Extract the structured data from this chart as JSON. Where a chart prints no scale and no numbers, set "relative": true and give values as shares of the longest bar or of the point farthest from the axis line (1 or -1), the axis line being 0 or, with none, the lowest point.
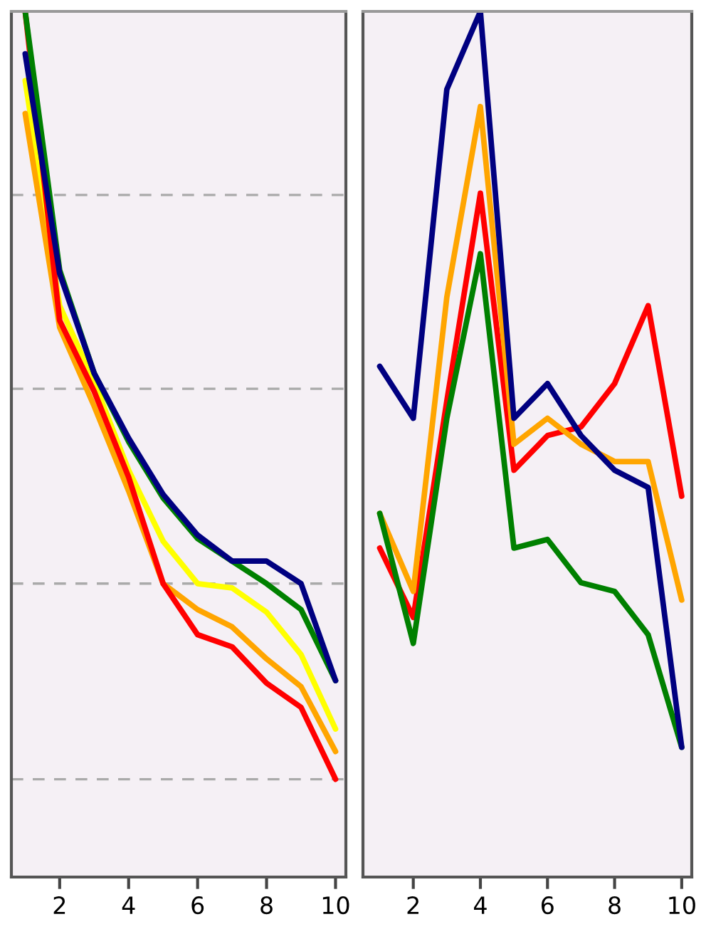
{
  "chart_data": [
    {
      "type": "line",
      "relative": true,
      "x": [
        1,
        2,
        3,
        4,
        5,
        6,
        7,
        8,
        9,
        10
      ],
      "xlim": [
        0.6,
        10.3
      ],
      "xticks": [
        2,
        4,
        6,
        8,
        10
      ],
      "tick_labels": "x",
      "grid": false,
      "legend": false,
      "line_style": "solid",
      "ref_lines": [
        {
          "axis": "y",
          "value": 0.788,
          "color": "#aaaaaa",
          "line_style": "dashed"
        },
        {
          "axis": "y",
          "value": 0.564,
          "color": "#aaaaaa",
          "line_style": "dashed"
        },
        {
          "axis": "y",
          "value": 0.339,
          "color": "#aaaaaa",
          "line_style": "dashed"
        },
        {
          "axis": "y",
          "value": 0.113,
          "color": "#aaaaaa",
          "line_style": "dashed"
        }
      ],
      "series": [
        {
          "color": "#ffff00",
          "values": [
            0.92,
            0.66,
            0.572,
            0.47,
            0.388,
            0.339,
            0.334,
            0.306,
            0.257,
            0.171
          ]
        },
        {
          "color": "#ffa500",
          "values": [
            0.882,
            0.635,
            0.544,
            0.446,
            0.339,
            0.309,
            0.289,
            0.252,
            0.22,
            0.145
          ]
        },
        {
          "color": "#ff0000",
          "values": [
            1,
            0.643,
            0.561,
            0.462,
            0.339,
            0.28,
            0.266,
            0.224,
            0.196,
            0.113
          ]
        },
        {
          "color": "#008000",
          "values": [
            1,
            0.701,
            0.582,
            0.503,
            0.438,
            0.391,
            0.365,
            0.339,
            0.309,
            0.227
          ]
        },
        {
          "color": "#000080",
          "values": [
            0.951,
            0.697,
            0.582,
            0.507,
            0.442,
            0.395,
            0.365,
            0.365,
            0.339,
            0.227
          ]
        }
      ]
    },
    {
      "type": "line",
      "relative": true,
      "x": [
        1,
        2,
        3,
        4,
        5,
        6,
        7,
        8,
        9,
        10
      ],
      "xlim": [
        0.5,
        10.3
      ],
      "xticks": [
        2,
        4,
        6,
        8,
        10
      ],
      "tick_labels": "x",
      "grid": false,
      "legend": false,
      "line_style": "solid",
      "series": [
        {
          "color": "#ff0000",
          "values": [
            0.38,
            0.3,
            0.55,
            0.79,
            0.47,
            0.51,
            0.52,
            0.57,
            0.66,
            0.44
          ]
        },
        {
          "color": "#ffa500",
          "values": [
            0.42,
            0.33,
            0.67,
            0.89,
            0.5,
            0.53,
            0.5,
            0.48,
            0.48,
            0.32
          ]
        },
        {
          "color": "#008000",
          "values": [
            0.42,
            0.27,
            0.53,
            0.72,
            0.38,
            0.39,
            0.34,
            0.33,
            0.28,
            0.15
          ]
        },
        {
          "color": "#000080",
          "values": [
            0.59,
            0.53,
            0.91,
            1,
            0.53,
            0.57,
            0.51,
            0.47,
            0.45,
            0.15
          ]
        }
      ]
    }
  ]
}
